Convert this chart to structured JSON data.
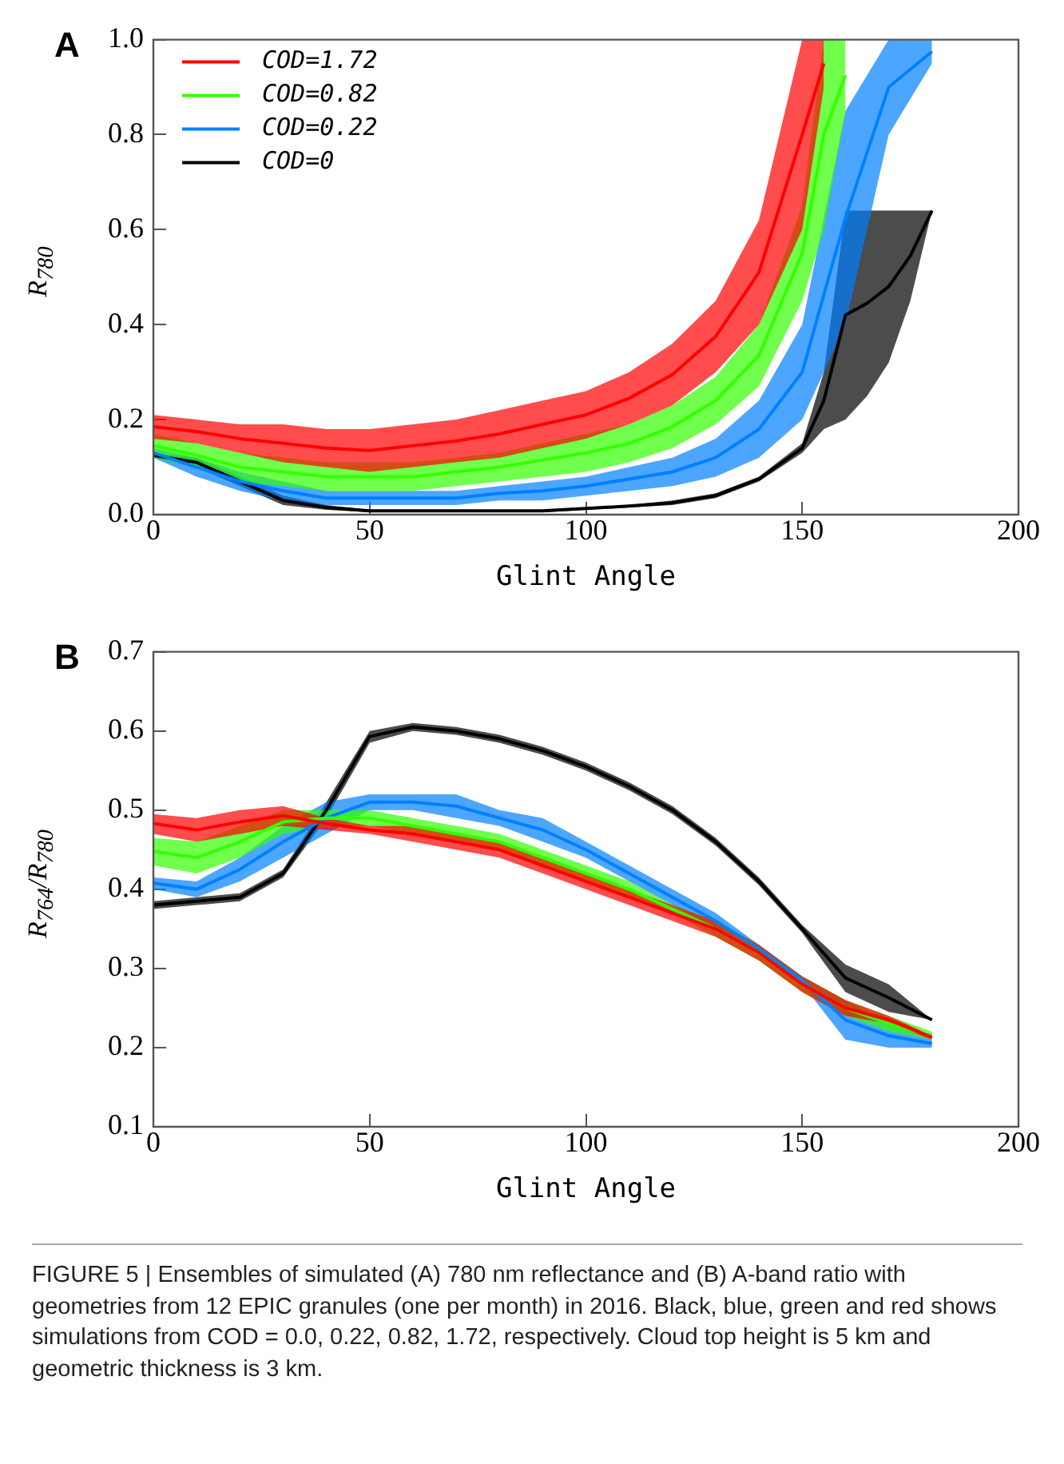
{
  "chart_data": [
    {
      "type": "line",
      "title": "A",
      "xlabel": "Glint Angle",
      "ylabel": "R$_{780}$",
      "xlim": [
        0,
        200
      ],
      "xticks": [
        0,
        50,
        100,
        150,
        200
      ],
      "ylim": [
        0,
        1.0
      ],
      "yticks": [
        {
          "value": 0,
          "label": "0.0"
        },
        0.2,
        0.4,
        0.6,
        0.8,
        {
          "value": 1,
          "label": "1.0"
        }
      ],
      "grid": false,
      "legend": "top left",
      "marker": "none",
      "line_style": "solid",
      "series": [
        {
          "name": "COD=1.72",
          "color": "#ff0000",
          "x": [
            0,
            10,
            20,
            30,
            40,
            50,
            60,
            70,
            80,
            90,
            100,
            110,
            120,
            130,
            140,
            150,
            155
          ],
          "values": [
            0.185,
            0.175,
            0.16,
            0.15,
            0.14,
            0.135,
            0.145,
            0.155,
            0.17,
            0.19,
            0.21,
            0.245,
            0.295,
            0.375,
            0.51,
            0.8,
            0.95
          ],
          "lower": [
            0.16,
            0.15,
            0.13,
            0.11,
            0.1,
            0.09,
            0.1,
            0.11,
            0.12,
            0.14,
            0.16,
            0.19,
            0.23,
            0.3,
            0.4,
            0.6,
            0.9
          ],
          "upper": [
            0.21,
            0.2,
            0.19,
            0.19,
            0.18,
            0.18,
            0.19,
            0.2,
            0.22,
            0.24,
            0.26,
            0.3,
            0.36,
            0.45,
            0.62,
            1.0,
            1.0
          ]
        },
        {
          "name": "COD=0.82",
          "color": "#33ff00",
          "x": [
            0,
            10,
            20,
            30,
            40,
            50,
            60,
            70,
            80,
            90,
            100,
            110,
            120,
            130,
            140,
            150,
            155,
            160
          ],
          "values": [
            0.145,
            0.125,
            0.1,
            0.09,
            0.08,
            0.08,
            0.08,
            0.09,
            0.1,
            0.115,
            0.13,
            0.15,
            0.185,
            0.24,
            0.335,
            0.55,
            0.8,
            0.925
          ],
          "lower": [
            0.12,
            0.1,
            0.07,
            0.06,
            0.05,
            0.05,
            0.05,
            0.06,
            0.07,
            0.08,
            0.09,
            0.11,
            0.14,
            0.19,
            0.27,
            0.45,
            0.6,
            0.85
          ],
          "upper": [
            0.17,
            0.15,
            0.13,
            0.12,
            0.11,
            0.11,
            0.11,
            0.12,
            0.13,
            0.15,
            0.17,
            0.19,
            0.23,
            0.29,
            0.4,
            0.65,
            1.0,
            1.0
          ]
        },
        {
          "name": "COD=0.22",
          "color": "#0080ff",
          "x": [
            0,
            10,
            20,
            30,
            40,
            50,
            60,
            70,
            80,
            90,
            100,
            110,
            120,
            130,
            140,
            150,
            160,
            170,
            180
          ],
          "values": [
            0.13,
            0.1,
            0.07,
            0.05,
            0.035,
            0.035,
            0.035,
            0.035,
            0.045,
            0.05,
            0.06,
            0.075,
            0.09,
            0.12,
            0.18,
            0.3,
            0.625,
            0.9,
            0.975
          ],
          "lower": [
            0.12,
            0.08,
            0.05,
            0.03,
            0.02,
            0.02,
            0.02,
            0.02,
            0.03,
            0.03,
            0.04,
            0.05,
            0.06,
            0.08,
            0.12,
            0.2,
            0.4,
            0.8,
            0.95
          ],
          "upper": [
            0.14,
            0.12,
            0.09,
            0.07,
            0.05,
            0.05,
            0.05,
            0.05,
            0.06,
            0.07,
            0.08,
            0.1,
            0.12,
            0.16,
            0.24,
            0.4,
            0.85,
            1.0,
            1.0
          ]
        },
        {
          "name": "COD=0",
          "color": "#000000",
          "x": [
            0,
            10,
            20,
            30,
            40,
            50,
            60,
            70,
            80,
            90,
            100,
            110,
            120,
            130,
            140,
            150,
            155,
            160,
            165,
            170,
            175,
            180
          ],
          "values": [
            0.125,
            0.11,
            0.07,
            0.03,
            0.015,
            0.008,
            0.008,
            0.008,
            0.008,
            0.008,
            0.013,
            0.018,
            0.025,
            0.04,
            0.075,
            0.14,
            0.24,
            0.42,
            0.445,
            0.48,
            0.545,
            0.64
          ],
          "lower": [
            0.12,
            0.1,
            0.06,
            0.02,
            0.01,
            0.005,
            0.005,
            0.005,
            0.005,
            0.005,
            0.01,
            0.015,
            0.02,
            0.035,
            0.07,
            0.13,
            0.18,
            0.2,
            0.25,
            0.32,
            0.45,
            0.64
          ],
          "upper": [
            0.13,
            0.12,
            0.08,
            0.04,
            0.02,
            0.01,
            0.01,
            0.01,
            0.01,
            0.01,
            0.015,
            0.02,
            0.03,
            0.045,
            0.08,
            0.15,
            0.3,
            0.64,
            0.64,
            0.64,
            0.64,
            0.64
          ]
        }
      ]
    },
    {
      "type": "line",
      "title": "B",
      "xlabel": "Glint Angle",
      "ylabel": "R$_{764}$/R$_{780}$",
      "x": [
        0,
        10,
        20,
        30,
        40,
        50,
        60,
        70,
        80,
        90,
        100,
        110,
        120,
        130,
        140,
        150,
        160,
        170,
        180
      ],
      "xlim": [
        0,
        200
      ],
      "xticks": [
        0,
        50,
        100,
        150,
        200
      ],
      "ylim": [
        0.1,
        0.7
      ],
      "yticks": [
        0.1,
        0.2,
        0.3,
        0.4,
        0.5,
        0.6,
        0.7
      ],
      "grid": false,
      "marker": "none",
      "line_style": "solid",
      "annotations": [
        "FIGURE 5 | Ensembles of simulated (A) 780 nm reflectance and (B) A-band ratio with geometries from 12 EPIC granules (one per month) in 2016. Black, blue, green and red shows simulations from COD = 0.0, 0.22, 0.82, 1.72, respectively. Cloud top height is 5 km and geometric thickness is 3 km."
      ],
      "series": [
        {
          "color": "#ff0000",
          "values": [
            0.483,
            0.475,
            0.485,
            0.493,
            0.483,
            0.475,
            0.47,
            0.46,
            0.45,
            0.43,
            0.41,
            0.39,
            0.37,
            0.35,
            0.32,
            0.28,
            0.25,
            0.235,
            0.213
          ],
          "lower": [
            0.47,
            0.46,
            0.47,
            0.48,
            0.475,
            0.47,
            0.46,
            0.45,
            0.44,
            0.42,
            0.4,
            0.38,
            0.36,
            0.34,
            0.31,
            0.27,
            0.24,
            0.23,
            0.21
          ],
          "upper": [
            0.495,
            0.49,
            0.5,
            0.505,
            0.49,
            0.48,
            0.48,
            0.47,
            0.46,
            0.44,
            0.42,
            0.4,
            0.38,
            0.36,
            0.33,
            0.29,
            0.26,
            0.24,
            0.215
          ]
        },
        {
          "color": "#33ff00",
          "values": [
            0.448,
            0.44,
            0.46,
            0.485,
            0.49,
            0.49,
            0.48,
            0.47,
            0.46,
            0.44,
            0.42,
            0.4,
            0.375,
            0.35,
            0.32,
            0.28,
            0.25,
            0.23,
            0.215
          ],
          "lower": [
            0.43,
            0.42,
            0.44,
            0.47,
            0.48,
            0.48,
            0.47,
            0.46,
            0.45,
            0.43,
            0.41,
            0.39,
            0.37,
            0.34,
            0.31,
            0.27,
            0.24,
            0.22,
            0.21
          ],
          "upper": [
            0.465,
            0.46,
            0.48,
            0.5,
            0.5,
            0.5,
            0.49,
            0.48,
            0.47,
            0.45,
            0.43,
            0.41,
            0.38,
            0.36,
            0.33,
            0.29,
            0.26,
            0.24,
            0.22
          ]
        },
        {
          "color": "#0080ff",
          "values": [
            0.408,
            0.4,
            0.425,
            0.46,
            0.49,
            0.51,
            0.51,
            0.505,
            0.49,
            0.475,
            0.45,
            0.42,
            0.39,
            0.36,
            0.325,
            0.285,
            0.235,
            0.215,
            0.205
          ],
          "lower": [
            0.4,
            0.39,
            0.41,
            0.44,
            0.47,
            0.5,
            0.5,
            0.49,
            0.48,
            0.46,
            0.44,
            0.41,
            0.38,
            0.35,
            0.32,
            0.28,
            0.21,
            0.2,
            0.2
          ],
          "upper": [
            0.415,
            0.41,
            0.44,
            0.48,
            0.51,
            0.52,
            0.52,
            0.52,
            0.5,
            0.49,
            0.46,
            0.43,
            0.4,
            0.37,
            0.33,
            0.29,
            0.26,
            0.23,
            0.21
          ]
        },
        {
          "color": "#000000",
          "values": [
            0.38,
            0.385,
            0.39,
            0.42,
            0.5,
            0.593,
            0.605,
            0.6,
            0.59,
            0.575,
            0.555,
            0.53,
            0.5,
            0.46,
            0.41,
            0.35,
            0.288,
            0.263,
            0.235
          ],
          "lower": [
            0.375,
            0.38,
            0.385,
            0.415,
            0.49,
            0.585,
            0.6,
            0.595,
            0.585,
            0.57,
            0.55,
            0.525,
            0.495,
            0.455,
            0.405,
            0.345,
            0.27,
            0.245,
            0.235
          ],
          "upper": [
            0.385,
            0.39,
            0.395,
            0.425,
            0.51,
            0.6,
            0.61,
            0.605,
            0.595,
            0.58,
            0.56,
            0.535,
            0.505,
            0.465,
            0.415,
            0.355,
            0.305,
            0.28,
            0.235
          ]
        }
      ]
    }
  ]
}
